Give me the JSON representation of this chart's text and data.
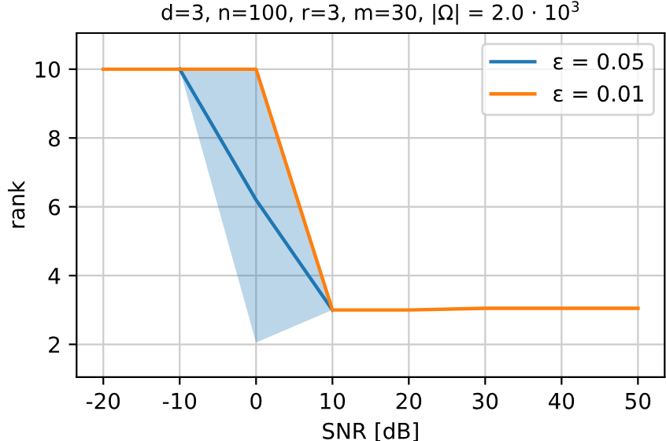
{
  "chart_data": {
    "type": "line",
    "title": "d=3, n=100, r=3, m=30, |Ω| = 2.0 · 10$^{3}$",
    "xlabel": "SNR [dB]",
    "ylabel": "rank",
    "x": [
      -20,
      -10,
      0,
      10,
      20,
      30,
      40,
      50
    ],
    "series": [
      {
        "name": "ε = 0.05",
        "color": "#1f77b4",
        "values": [
          null,
          10,
          6.2,
          3,
          null,
          null,
          null,
          null
        ],
        "lower": [
          null,
          10,
          2.05,
          3,
          null,
          null,
          null,
          null
        ],
        "upper": [
          null,
          10,
          10,
          3,
          null,
          null,
          null,
          null
        ]
      },
      {
        "name": "ε = 0.01",
        "color": "#ff7f0e",
        "values": [
          10,
          10,
          10,
          3,
          3,
          3.05,
          3.05,
          3.05
        ]
      }
    ],
    "xlim": [
      -23.5,
      53.5
    ],
    "xticks": [
      -20,
      -10,
      0,
      10,
      20,
      30,
      40,
      50
    ],
    "ylim": [
      1.05,
      11.05
    ],
    "yticks": [
      2,
      4,
      6,
      8,
      10
    ],
    "grid": true,
    "legend": "top right",
    "marker": "none",
    "line_style": "solid"
  }
}
